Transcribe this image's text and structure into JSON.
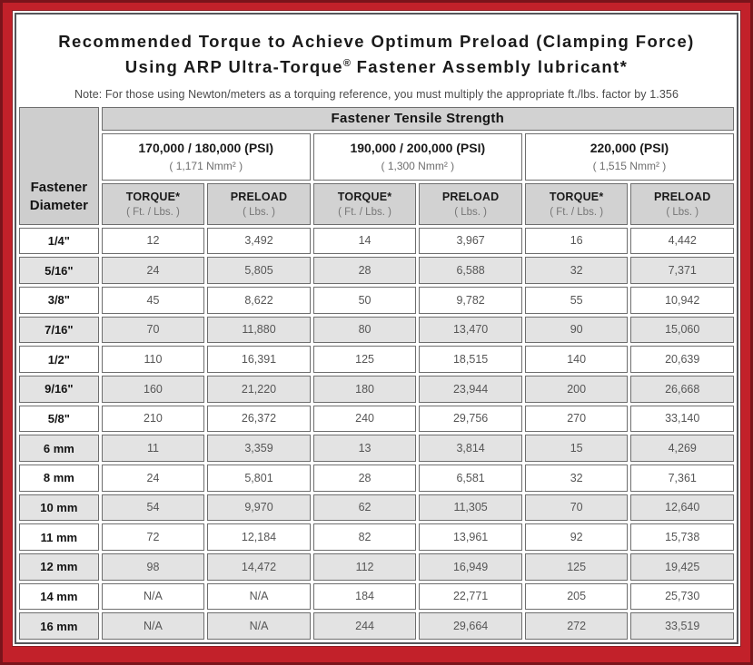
{
  "title": {
    "line1": "Recommended Torque to Achieve Optimum Preload (Clamping Force)",
    "line2_pre": "Using ARP Ultra-Torque",
    "line2_sup": "®",
    "line2_post": " Fastener Assembly lubricant*",
    "note": "Note: For those using Newton/meters as a torquing reference, you must multiply the appropriate ft./lbs. factor by 1.356"
  },
  "table": {
    "tensile_header": "Fastener Tensile Strength",
    "diameter_header_line1": "Fastener",
    "diameter_header_line2": "Diameter",
    "psi_groups": [
      {
        "psi": "170,000 / 180,000 (PSI)",
        "nmm": "( 1,171 Nmm² )"
      },
      {
        "psi": "190,000 / 200,000 (PSI)",
        "nmm": "( 1,300 Nmm² )"
      },
      {
        "psi": "220,000 (PSI)",
        "nmm": "( 1,515 Nmm² )"
      }
    ],
    "subheaders": {
      "torque_label": "TORQUE*",
      "torque_unit": "( Ft. / Lbs. )",
      "preload_label": "PRELOAD",
      "preload_unit": "( Lbs. )"
    },
    "rows": [
      {
        "diameter": "1/4\"",
        "values": [
          "12",
          "3,492",
          "14",
          "3,967",
          "16",
          "4,442"
        ]
      },
      {
        "diameter": "5/16\"",
        "values": [
          "24",
          "5,805",
          "28",
          "6,588",
          "32",
          "7,371"
        ]
      },
      {
        "diameter": "3/8\"",
        "values": [
          "45",
          "8,622",
          "50",
          "9,782",
          "55",
          "10,942"
        ]
      },
      {
        "diameter": "7/16\"",
        "values": [
          "70",
          "11,880",
          "80",
          "13,470",
          "90",
          "15,060"
        ]
      },
      {
        "diameter": "1/2\"",
        "values": [
          "110",
          "16,391",
          "125",
          "18,515",
          "140",
          "20,639"
        ]
      },
      {
        "diameter": "9/16\"",
        "values": [
          "160",
          "21,220",
          "180",
          "23,944",
          "200",
          "26,668"
        ]
      },
      {
        "diameter": "5/8\"",
        "values": [
          "210",
          "26,372",
          "240",
          "29,756",
          "270",
          "33,140"
        ]
      },
      {
        "diameter": "6 mm",
        "values": [
          "11",
          "3,359",
          "13",
          "3,814",
          "15",
          "4,269"
        ]
      },
      {
        "diameter": "8 mm",
        "values": [
          "24",
          "5,801",
          "28",
          "6,581",
          "32",
          "7,361"
        ]
      },
      {
        "diameter": "10 mm",
        "values": [
          "54",
          "9,970",
          "62",
          "11,305",
          "70",
          "12,640"
        ]
      },
      {
        "diameter": "11 mm",
        "values": [
          "72",
          "12,184",
          "82",
          "13,961",
          "92",
          "15,738"
        ]
      },
      {
        "diameter": "12 mm",
        "values": [
          "98",
          "14,472",
          "112",
          "16,949",
          "125",
          "19,425"
        ]
      },
      {
        "diameter": "14 mm",
        "values": [
          "N/A",
          "N/A",
          "184",
          "22,771",
          "205",
          "25,730"
        ]
      },
      {
        "diameter": "16 mm",
        "values": [
          "N/A",
          "N/A",
          "244",
          "29,664",
          "272",
          "33,519"
        ]
      }
    ]
  },
  "colors": {
    "frame_red": "#c2212a",
    "frame_dark_outline": "#7a141b",
    "panel_border": "#55565a",
    "header_gray": "#d2d2d2",
    "row_alt_gray": "#e3e3e3",
    "cell_border": "#6e6e6e"
  }
}
